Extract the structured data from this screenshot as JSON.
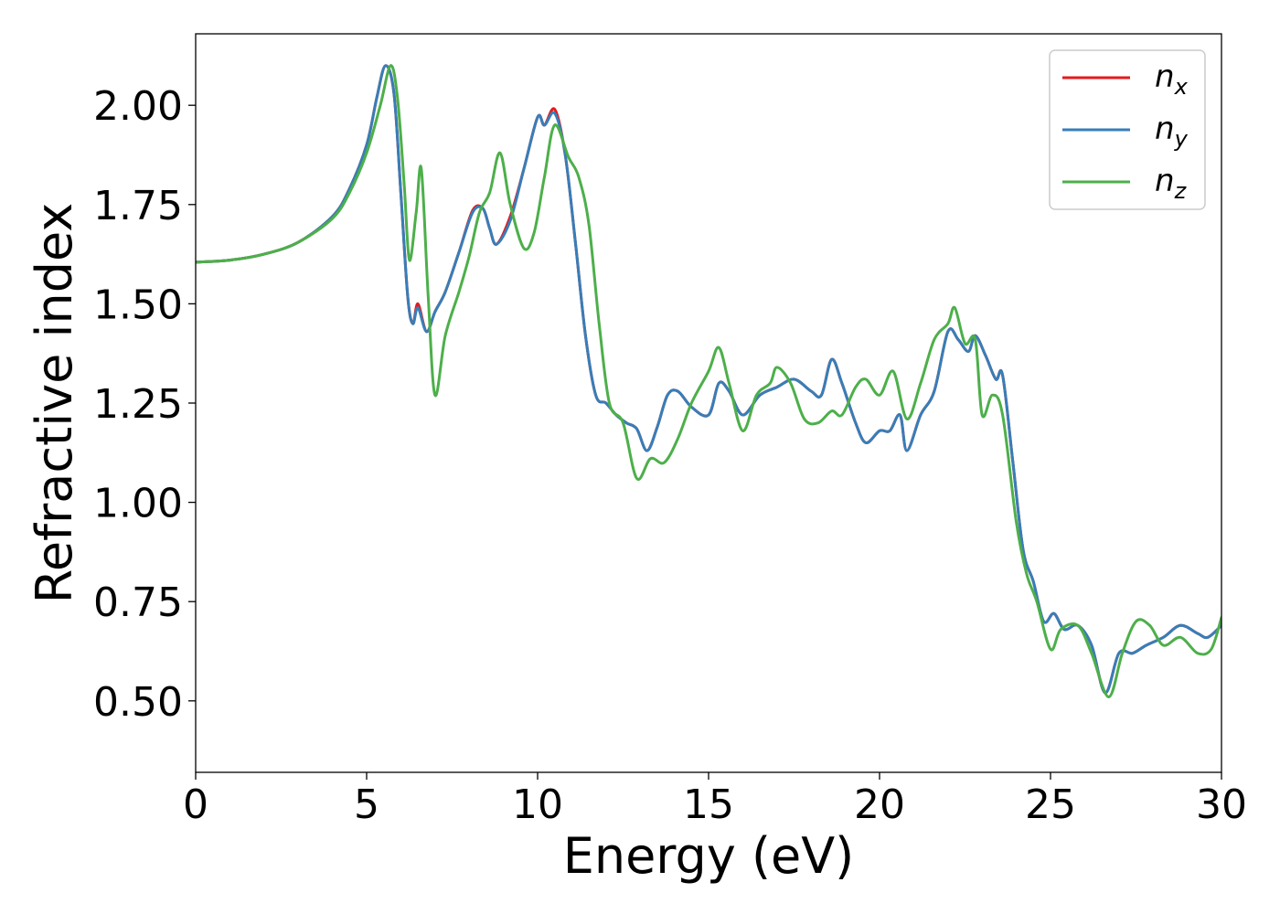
{
  "chart_data": {
    "type": "line",
    "xlabel": "Energy (eV)",
    "ylabel": "Refractive index",
    "xlim": [
      0,
      30
    ],
    "ylim": [
      0.32,
      2.18
    ],
    "xticks": [
      "0",
      "5",
      "10",
      "15",
      "20",
      "25",
      "30"
    ],
    "yticks": [
      "0.50",
      "0.75",
      "1.00",
      "1.25",
      "1.50",
      "1.75",
      "2.00"
    ],
    "grid": false,
    "legend_position": "top-right",
    "series": [
      {
        "name": "n",
        "subscript": "x",
        "color": "#e41a1c",
        "points": [
          [
            0,
            1.605
          ],
          [
            1,
            1.61
          ],
          [
            2,
            1.625
          ],
          [
            3,
            1.655
          ],
          [
            4,
            1.72
          ],
          [
            4.5,
            1.79
          ],
          [
            5,
            1.9
          ],
          [
            5.3,
            2.02
          ],
          [
            5.55,
            2.1
          ],
          [
            5.8,
            2.03
          ],
          [
            6.0,
            1.78
          ],
          [
            6.2,
            1.52
          ],
          [
            6.35,
            1.45
          ],
          [
            6.5,
            1.5
          ],
          [
            6.75,
            1.43
          ],
          [
            7.0,
            1.48
          ],
          [
            7.3,
            1.53
          ],
          [
            7.7,
            1.63
          ],
          [
            8.1,
            1.735
          ],
          [
            8.4,
            1.74
          ],
          [
            8.6,
            1.69
          ],
          [
            8.8,
            1.65
          ],
          [
            9.2,
            1.72
          ],
          [
            9.6,
            1.84
          ],
          [
            10.0,
            1.97
          ],
          [
            10.2,
            1.95
          ],
          [
            10.5,
            1.99
          ],
          [
            10.8,
            1.88
          ],
          [
            11.1,
            1.66
          ],
          [
            11.4,
            1.42
          ],
          [
            11.7,
            1.27
          ],
          [
            12.0,
            1.25
          ],
          [
            12.3,
            1.22
          ],
          [
            12.6,
            1.2
          ],
          [
            12.9,
            1.185
          ],
          [
            13.2,
            1.13
          ],
          [
            13.5,
            1.19
          ],
          [
            13.8,
            1.27
          ],
          [
            14.1,
            1.28
          ],
          [
            14.5,
            1.24
          ],
          [
            15.0,
            1.22
          ],
          [
            15.3,
            1.3
          ],
          [
            15.6,
            1.28
          ],
          [
            16.0,
            1.22
          ],
          [
            16.5,
            1.27
          ],
          [
            17.0,
            1.29
          ],
          [
            17.5,
            1.31
          ],
          [
            18.0,
            1.28
          ],
          [
            18.3,
            1.27
          ],
          [
            18.6,
            1.36
          ],
          [
            18.9,
            1.3
          ],
          [
            19.3,
            1.2
          ],
          [
            19.6,
            1.15
          ],
          [
            20.0,
            1.18
          ],
          [
            20.3,
            1.18
          ],
          [
            20.6,
            1.22
          ],
          [
            20.8,
            1.13
          ],
          [
            21.2,
            1.22
          ],
          [
            21.6,
            1.28
          ],
          [
            22.0,
            1.43
          ],
          [
            22.3,
            1.41
          ],
          [
            22.6,
            1.38
          ],
          [
            22.8,
            1.42
          ],
          [
            23.1,
            1.37
          ],
          [
            23.4,
            1.31
          ],
          [
            23.6,
            1.32
          ],
          [
            23.9,
            1.1
          ],
          [
            24.2,
            0.88
          ],
          [
            24.5,
            0.8
          ],
          [
            24.8,
            0.7
          ],
          [
            25.1,
            0.72
          ],
          [
            25.4,
            0.68
          ],
          [
            25.8,
            0.69
          ],
          [
            26.2,
            0.64
          ],
          [
            26.6,
            0.52
          ],
          [
            27.0,
            0.62
          ],
          [
            27.4,
            0.62
          ],
          [
            27.8,
            0.64
          ],
          [
            28.3,
            0.66
          ],
          [
            28.8,
            0.69
          ],
          [
            29.3,
            0.67
          ],
          [
            29.6,
            0.66
          ],
          [
            30.0,
            0.69
          ]
        ]
      },
      {
        "name": "n",
        "subscript": "y",
        "color": "#377eb8",
        "points": [
          [
            0,
            1.605
          ],
          [
            1,
            1.61
          ],
          [
            2,
            1.625
          ],
          [
            3,
            1.655
          ],
          [
            4,
            1.72
          ],
          [
            4.5,
            1.79
          ],
          [
            5,
            1.9
          ],
          [
            5.3,
            2.02
          ],
          [
            5.55,
            2.1
          ],
          [
            5.8,
            2.03
          ],
          [
            6.0,
            1.78
          ],
          [
            6.2,
            1.52
          ],
          [
            6.35,
            1.45
          ],
          [
            6.5,
            1.49
          ],
          [
            6.75,
            1.43
          ],
          [
            7.0,
            1.48
          ],
          [
            7.3,
            1.53
          ],
          [
            7.7,
            1.63
          ],
          [
            8.1,
            1.73
          ],
          [
            8.4,
            1.74
          ],
          [
            8.6,
            1.69
          ],
          [
            8.8,
            1.65
          ],
          [
            9.2,
            1.71
          ],
          [
            9.6,
            1.84
          ],
          [
            10.0,
            1.97
          ],
          [
            10.2,
            1.95
          ],
          [
            10.5,
            1.98
          ],
          [
            10.8,
            1.88
          ],
          [
            11.1,
            1.66
          ],
          [
            11.4,
            1.42
          ],
          [
            11.7,
            1.27
          ],
          [
            12.0,
            1.25
          ],
          [
            12.3,
            1.22
          ],
          [
            12.6,
            1.2
          ],
          [
            12.9,
            1.185
          ],
          [
            13.2,
            1.13
          ],
          [
            13.5,
            1.19
          ],
          [
            13.8,
            1.27
          ],
          [
            14.1,
            1.28
          ],
          [
            14.5,
            1.24
          ],
          [
            15.0,
            1.22
          ],
          [
            15.3,
            1.3
          ],
          [
            15.6,
            1.28
          ],
          [
            16.0,
            1.22
          ],
          [
            16.5,
            1.27
          ],
          [
            17.0,
            1.29
          ],
          [
            17.5,
            1.31
          ],
          [
            18.0,
            1.28
          ],
          [
            18.3,
            1.27
          ],
          [
            18.6,
            1.36
          ],
          [
            18.9,
            1.3
          ],
          [
            19.3,
            1.2
          ],
          [
            19.6,
            1.15
          ],
          [
            20.0,
            1.18
          ],
          [
            20.3,
            1.18
          ],
          [
            20.6,
            1.22
          ],
          [
            20.8,
            1.13
          ],
          [
            21.2,
            1.22
          ],
          [
            21.6,
            1.28
          ],
          [
            22.0,
            1.43
          ],
          [
            22.3,
            1.41
          ],
          [
            22.6,
            1.38
          ],
          [
            22.8,
            1.42
          ],
          [
            23.1,
            1.37
          ],
          [
            23.4,
            1.31
          ],
          [
            23.6,
            1.32
          ],
          [
            23.9,
            1.1
          ],
          [
            24.2,
            0.88
          ],
          [
            24.5,
            0.8
          ],
          [
            24.8,
            0.7
          ],
          [
            25.1,
            0.72
          ],
          [
            25.4,
            0.68
          ],
          [
            25.8,
            0.69
          ],
          [
            26.2,
            0.64
          ],
          [
            26.6,
            0.52
          ],
          [
            27.0,
            0.62
          ],
          [
            27.4,
            0.62
          ],
          [
            27.8,
            0.64
          ],
          [
            28.3,
            0.66
          ],
          [
            28.8,
            0.69
          ],
          [
            29.3,
            0.67
          ],
          [
            29.6,
            0.66
          ],
          [
            30.0,
            0.69
          ]
        ]
      },
      {
        "name": "n",
        "subscript": "z",
        "color": "#4daf4a",
        "points": [
          [
            0,
            1.605
          ],
          [
            1,
            1.61
          ],
          [
            2,
            1.625
          ],
          [
            3,
            1.655
          ],
          [
            4,
            1.715
          ],
          [
            4.5,
            1.78
          ],
          [
            5,
            1.88
          ],
          [
            5.4,
            2.0
          ],
          [
            5.7,
            2.1
          ],
          [
            5.9,
            2.02
          ],
          [
            6.1,
            1.8
          ],
          [
            6.25,
            1.61
          ],
          [
            6.45,
            1.73
          ],
          [
            6.6,
            1.84
          ],
          [
            6.8,
            1.52
          ],
          [
            7.0,
            1.27
          ],
          [
            7.3,
            1.42
          ],
          [
            7.7,
            1.53
          ],
          [
            8.0,
            1.62
          ],
          [
            8.3,
            1.73
          ],
          [
            8.6,
            1.78
          ],
          [
            8.9,
            1.88
          ],
          [
            9.2,
            1.75
          ],
          [
            9.6,
            1.64
          ],
          [
            9.9,
            1.68
          ],
          [
            10.2,
            1.82
          ],
          [
            10.5,
            1.95
          ],
          [
            10.9,
            1.87
          ],
          [
            11.2,
            1.82
          ],
          [
            11.5,
            1.7
          ],
          [
            11.8,
            1.45
          ],
          [
            12.1,
            1.25
          ],
          [
            12.5,
            1.2
          ],
          [
            12.9,
            1.06
          ],
          [
            13.3,
            1.11
          ],
          [
            13.7,
            1.1
          ],
          [
            14.1,
            1.16
          ],
          [
            14.5,
            1.25
          ],
          [
            15.0,
            1.33
          ],
          [
            15.3,
            1.39
          ],
          [
            15.6,
            1.3
          ],
          [
            16.0,
            1.18
          ],
          [
            16.4,
            1.27
          ],
          [
            16.8,
            1.3
          ],
          [
            17.0,
            1.34
          ],
          [
            17.4,
            1.3
          ],
          [
            17.8,
            1.21
          ],
          [
            18.2,
            1.2
          ],
          [
            18.6,
            1.23
          ],
          [
            18.9,
            1.22
          ],
          [
            19.3,
            1.29
          ],
          [
            19.6,
            1.31
          ],
          [
            20.0,
            1.27
          ],
          [
            20.4,
            1.33
          ],
          [
            20.8,
            1.21
          ],
          [
            21.2,
            1.3
          ],
          [
            21.6,
            1.41
          ],
          [
            22.0,
            1.45
          ],
          [
            22.2,
            1.49
          ],
          [
            22.5,
            1.4
          ],
          [
            22.8,
            1.41
          ],
          [
            23.0,
            1.22
          ],
          [
            23.3,
            1.27
          ],
          [
            23.6,
            1.22
          ],
          [
            24.0,
            0.95
          ],
          [
            24.3,
            0.82
          ],
          [
            24.6,
            0.75
          ],
          [
            25.0,
            0.63
          ],
          [
            25.3,
            0.68
          ],
          [
            25.8,
            0.69
          ],
          [
            26.2,
            0.62
          ],
          [
            26.7,
            0.51
          ],
          [
            27.1,
            0.62
          ],
          [
            27.5,
            0.7
          ],
          [
            27.9,
            0.69
          ],
          [
            28.3,
            0.64
          ],
          [
            28.8,
            0.66
          ],
          [
            29.3,
            0.62
          ],
          [
            29.7,
            0.63
          ],
          [
            30.0,
            0.71
          ]
        ]
      }
    ]
  }
}
